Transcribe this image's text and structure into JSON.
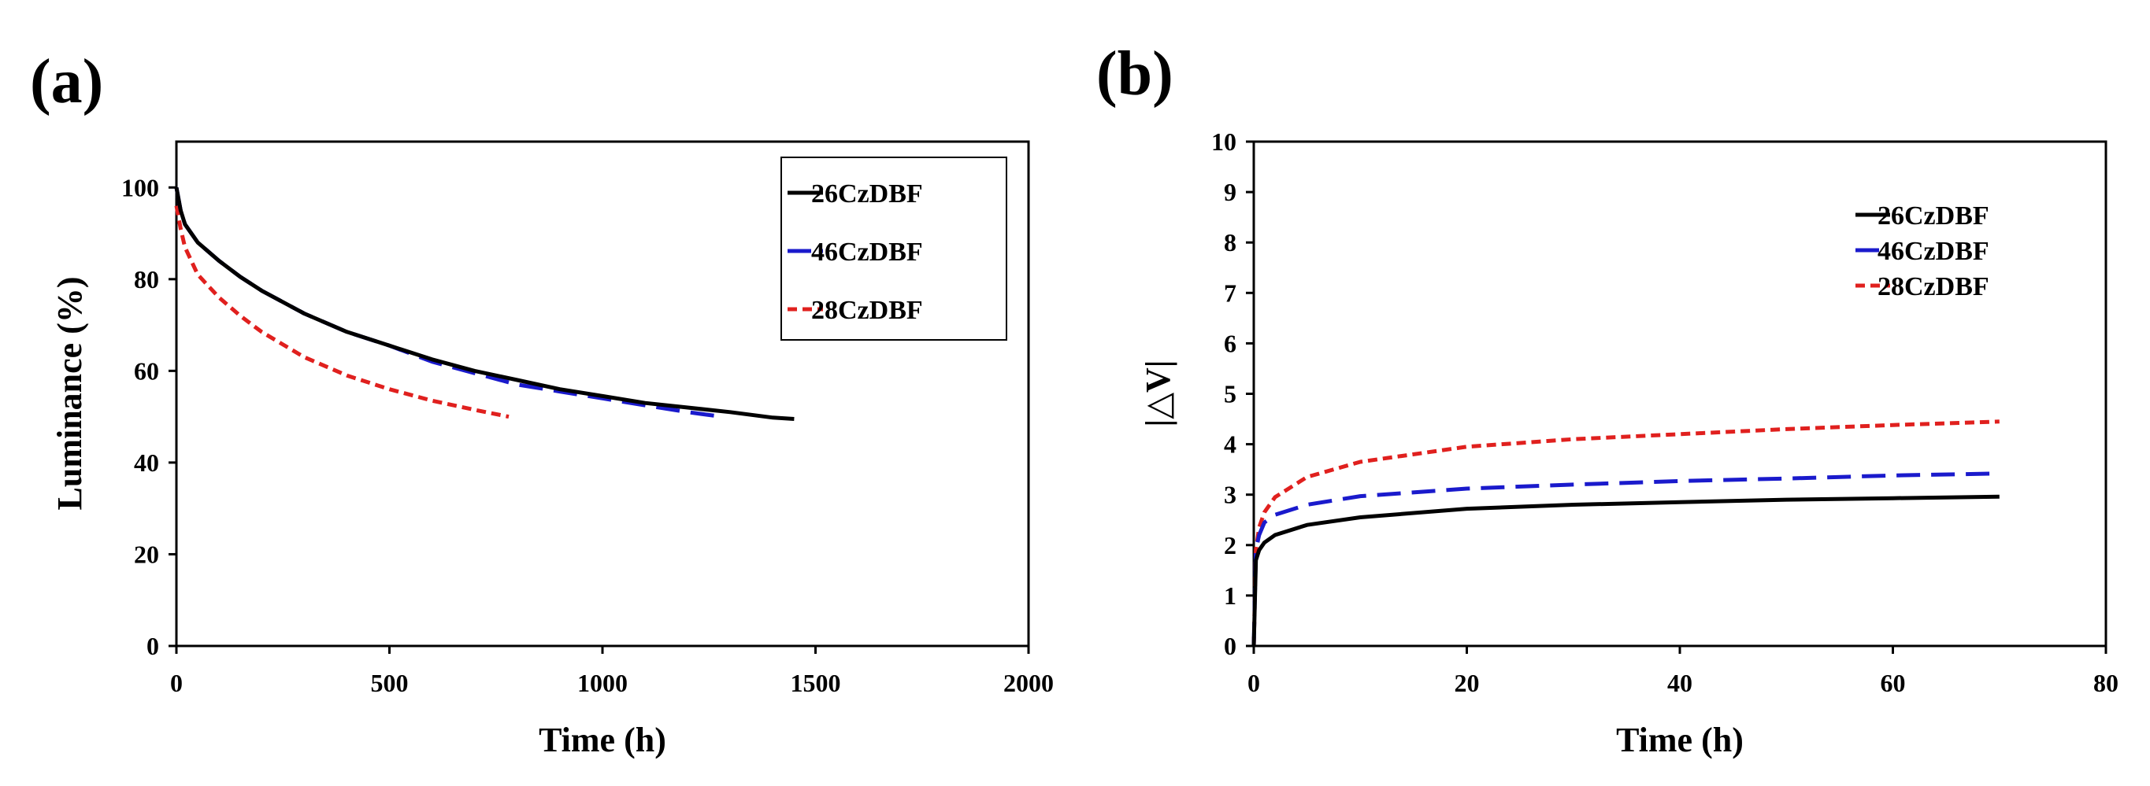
{
  "chart_data": [
    {
      "panel": "(a)",
      "type": "line",
      "title": "",
      "xlabel": "Time (h)",
      "ylabel": "Luminance (%)",
      "xlim": [
        0,
        2000
      ],
      "ylim": [
        0,
        110
      ],
      "xticks": [
        0,
        500,
        1000,
        1500,
        2000
      ],
      "yticks": [
        0,
        20,
        40,
        60,
        80,
        100
      ],
      "legend_position": "top-right",
      "series": [
        {
          "name": "26CzDBF",
          "color": "#000000",
          "dash": "solid",
          "x": [
            0,
            10,
            20,
            50,
            100,
            150,
            200,
            300,
            400,
            500,
            600,
            700,
            800,
            900,
            1000,
            1100,
            1200,
            1300,
            1400,
            1450
          ],
          "y": [
            100,
            95,
            92,
            88,
            84,
            80.5,
            77.5,
            72.5,
            68.5,
            65.5,
            62.5,
            60,
            58,
            56,
            54.5,
            53,
            52,
            51,
            49.8,
            49.5
          ]
        },
        {
          "name": "46CzDBF",
          "color": "#1a1acc",
          "dash": "long",
          "x": [
            0,
            10,
            20,
            50,
            100,
            150,
            200,
            300,
            400,
            500,
            600,
            700,
            800,
            900,
            1000,
            1100,
            1200,
            1280
          ],
          "y": [
            100,
            95,
            92,
            88,
            84,
            80.5,
            77.5,
            72.5,
            68.5,
            65.5,
            62,
            59.5,
            57,
            55.5,
            54,
            52.5,
            51,
            50
          ]
        },
        {
          "name": "28CzDBF",
          "color": "#e0201e",
          "dash": "short",
          "x": [
            0,
            10,
            20,
            50,
            100,
            150,
            200,
            300,
            400,
            500,
            600,
            700,
            780
          ],
          "y": [
            96,
            91,
            87,
            81,
            76,
            72,
            68.5,
            63,
            59,
            56,
            53.5,
            51.5,
            50
          ]
        }
      ]
    },
    {
      "panel": "(b)",
      "type": "line",
      "title": "",
      "xlabel": "Time (h)",
      "ylabel": "|△V|",
      "xlim": [
        0,
        80
      ],
      "ylim": [
        0,
        10
      ],
      "xticks": [
        0,
        20,
        40,
        60,
        80
      ],
      "yticks": [
        0,
        1,
        2,
        3,
        4,
        5,
        6,
        7,
        8,
        9,
        10
      ],
      "legend_position": "top-right",
      "series": [
        {
          "name": "26CzDBF",
          "color": "#000000",
          "dash": "solid",
          "x": [
            0,
            0.2,
            0.5,
            1,
            2,
            5,
            10,
            20,
            30,
            40,
            50,
            60,
            70
          ],
          "y": [
            0,
            1.7,
            1.9,
            2.05,
            2.2,
            2.4,
            2.55,
            2.72,
            2.8,
            2.85,
            2.9,
            2.93,
            2.96
          ]
        },
        {
          "name": "46CzDBF",
          "color": "#1a1acc",
          "dash": "long",
          "x": [
            0,
            0.2,
            0.5,
            1,
            2,
            5,
            10,
            20,
            30,
            40,
            50,
            60,
            70
          ],
          "y": [
            0,
            1.9,
            2.2,
            2.45,
            2.6,
            2.8,
            2.97,
            3.12,
            3.2,
            3.27,
            3.32,
            3.38,
            3.42
          ]
        },
        {
          "name": "28CzDBF",
          "color": "#e0201e",
          "dash": "short",
          "x": [
            0,
            0.2,
            0.5,
            1,
            2,
            5,
            10,
            20,
            30,
            40,
            50,
            60,
            70
          ],
          "y": [
            0,
            1.9,
            2.35,
            2.65,
            2.95,
            3.35,
            3.65,
            3.95,
            4.1,
            4.2,
            4.3,
            4.38,
            4.45
          ]
        }
      ]
    }
  ]
}
